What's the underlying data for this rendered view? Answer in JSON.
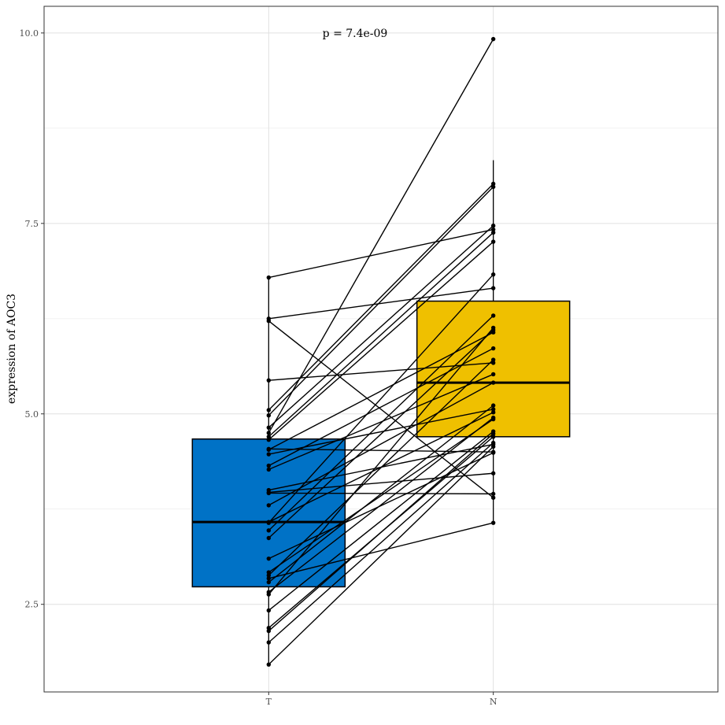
{
  "chart_data": {
    "type": "box",
    "ylabel": "expression of AOC3",
    "xlabel": "",
    "annotation": "p = 7.4e-09",
    "categories": [
      "T",
      "N"
    ],
    "ylim": [
      1.35,
      10.35
    ],
    "y_ticks": [
      2.5,
      5.0,
      7.5,
      10.0
    ],
    "y_tick_labels": [
      "2.5",
      "5.0",
      "7.5",
      "10.0"
    ],
    "grid": true,
    "legend": "none",
    "boxes": [
      {
        "category": "T",
        "q1": 2.73,
        "median": 3.58,
        "q3": 4.67,
        "whisker_low": 1.71,
        "whisker_high": 6.79,
        "color": "#0072C6"
      },
      {
        "category": "N",
        "q1": 4.7,
        "median": 5.41,
        "q3": 6.48,
        "whisker_low": 3.57,
        "whisker_high": 8.33,
        "color": "#EFC000"
      }
    ],
    "pairs": [
      [
        6.79,
        7.42
      ],
      [
        6.25,
        6.65
      ],
      [
        6.22,
        3.9
      ],
      [
        5.44,
        5.67
      ],
      [
        5.05,
        8.02
      ],
      [
        4.98,
        7.98
      ],
      [
        4.82,
        7.47
      ],
      [
        4.75,
        9.92
      ],
      [
        4.7,
        7.38
      ],
      [
        4.66,
        7.26
      ],
      [
        4.53,
        6.07
      ],
      [
        4.47,
        5.06
      ],
      [
        4.32,
        5.86
      ],
      [
        4.27,
        5.52
      ],
      [
        4.0,
        4.6
      ],
      [
        3.97,
        4.22
      ],
      [
        3.8,
        5.41
      ],
      [
        3.58,
        5.02
      ],
      [
        3.57,
        6.83
      ],
      [
        3.47,
        6.29
      ],
      [
        3.37,
        6.1
      ],
      [
        3.1,
        4.49
      ],
      [
        2.92,
        4.93
      ],
      [
        2.88,
        5.71
      ],
      [
        2.84,
        3.57
      ],
      [
        2.79,
        5.11
      ],
      [
        2.66,
        4.95
      ],
      [
        2.63,
        6.13
      ],
      [
        2.42,
        4.77
      ],
      [
        2.19,
        4.7
      ],
      [
        2.15,
        4.74
      ],
      [
        2.0,
        4.62
      ],
      [
        1.71,
        4.57
      ],
      [
        4.54,
        4.5
      ],
      [
        3.96,
        3.95
      ]
    ]
  }
}
